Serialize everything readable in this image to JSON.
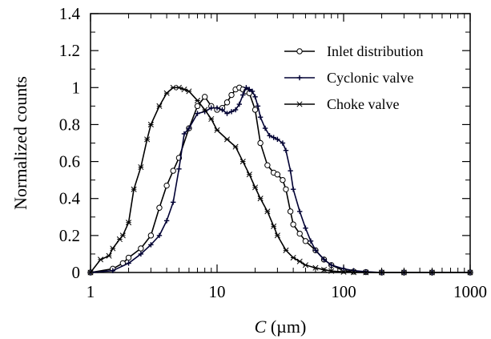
{
  "chart_data": {
    "type": "line",
    "xscale": "log",
    "xlim": [
      1,
      1000
    ],
    "ylim": [
      0,
      1.4
    ],
    "x_ticks": [
      {
        "value": 1,
        "label": "1"
      },
      {
        "value": 10,
        "label": "10"
      },
      {
        "value": 100,
        "label": "100"
      },
      {
        "value": 1000,
        "label": "1000"
      }
    ],
    "y_ticks": [
      {
        "value": 0,
        "label": "0"
      },
      {
        "value": 0.2,
        "label": "0.2"
      },
      {
        "value": 0.4,
        "label": "0.4"
      },
      {
        "value": 0.6,
        "label": "0.6"
      },
      {
        "value": 0.8,
        "label": "0.8"
      },
      {
        "value": 1,
        "label": "1"
      },
      {
        "value": 1.2,
        "label": "1.2"
      },
      {
        "value": 1.4,
        "label": "1.4"
      }
    ],
    "xlabel_var": "C",
    "xlabel_unit": " (µm)",
    "ylabel": "Normalized counts",
    "grid": false,
    "legend_position": "top-right",
    "series": [
      {
        "name": "Inlet distribution",
        "marker": "circle",
        "color": "#000000",
        "x": [
          1,
          1.5,
          1.8,
          2,
          2.5,
          3,
          3.5,
          4,
          4.5,
          5,
          6,
          7,
          8,
          9,
          10,
          11,
          12,
          13,
          14,
          15,
          16,
          17,
          18,
          20,
          22,
          25,
          28,
          30,
          33,
          35,
          38,
          40,
          45,
          50,
          60,
          70,
          80,
          100,
          120,
          150,
          200,
          300,
          500,
          1000
        ],
        "y": [
          0,
          0.02,
          0.05,
          0.08,
          0.13,
          0.2,
          0.35,
          0.47,
          0.55,
          0.62,
          0.78,
          0.9,
          0.95,
          0.9,
          0.88,
          0.89,
          0.92,
          0.96,
          0.99,
          1.0,
          0.99,
          0.98,
          0.97,
          0.88,
          0.7,
          0.58,
          0.54,
          0.53,
          0.5,
          0.45,
          0.33,
          0.26,
          0.21,
          0.17,
          0.12,
          0.07,
          0.04,
          0.01,
          0.005,
          0.002,
          0,
          0,
          0,
          0
        ]
      },
      {
        "name": "Cyclonic valve",
        "marker": "plus",
        "color": "#000033",
        "x": [
          1,
          1.5,
          2,
          2.5,
          3,
          3.5,
          4,
          4.5,
          5,
          5.5,
          6,
          7,
          8,
          9,
          10,
          11,
          12,
          13,
          14,
          15,
          16,
          17,
          18,
          19,
          20,
          21,
          22,
          24,
          26,
          28,
          30,
          33,
          35,
          38,
          40,
          45,
          50,
          55,
          60,
          70,
          80,
          100,
          120,
          150,
          200,
          300,
          500,
          1000
        ],
        "y": [
          0,
          0.01,
          0.05,
          0.1,
          0.15,
          0.2,
          0.28,
          0.38,
          0.56,
          0.75,
          0.78,
          0.86,
          0.87,
          0.89,
          0.89,
          0.88,
          0.86,
          0.87,
          0.88,
          0.91,
          0.96,
          1.0,
          0.99,
          0.98,
          0.95,
          0.9,
          0.84,
          0.78,
          0.74,
          0.73,
          0.72,
          0.7,
          0.66,
          0.55,
          0.45,
          0.33,
          0.24,
          0.17,
          0.12,
          0.07,
          0.04,
          0.02,
          0.01,
          0.004,
          0,
          0,
          0,
          0
        ]
      },
      {
        "name": "Choke valve",
        "marker": "star",
        "color": "#000000",
        "x": [
          1,
          1.2,
          1.4,
          1.5,
          1.7,
          1.8,
          2,
          2.2,
          2.5,
          2.8,
          3,
          3.5,
          4,
          4.5,
          5,
          5.5,
          6,
          7,
          8,
          9,
          10,
          12,
          14,
          16,
          18,
          20,
          22,
          25,
          28,
          30,
          35,
          40,
          45,
          50,
          60,
          70,
          80,
          100,
          120,
          150,
          200,
          300,
          500,
          1000
        ],
        "y": [
          0,
          0.07,
          0.09,
          0.13,
          0.18,
          0.2,
          0.27,
          0.45,
          0.57,
          0.72,
          0.8,
          0.9,
          0.97,
          1.0,
          1.0,
          0.99,
          0.98,
          0.93,
          0.88,
          0.83,
          0.77,
          0.72,
          0.68,
          0.6,
          0.53,
          0.46,
          0.4,
          0.33,
          0.25,
          0.2,
          0.12,
          0.08,
          0.06,
          0.04,
          0.025,
          0.015,
          0.008,
          0.003,
          0.001,
          0,
          0,
          0,
          0,
          0
        ]
      }
    ]
  }
}
